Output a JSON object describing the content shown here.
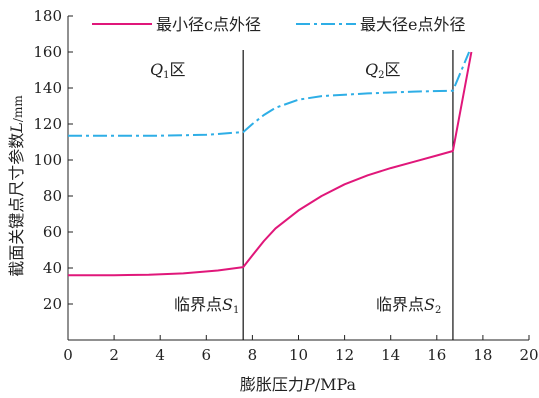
{
  "chart_data": {
    "type": "line",
    "xlabel": {
      "prefix": "膨胀压力",
      "var": "P",
      "unit": "/MPa"
    },
    "ylabel": {
      "prefix": "截面关键点尺寸参数",
      "var": "L",
      "unit": "/mm"
    },
    "xlim": [
      0,
      20
    ],
    "ylim": [
      0,
      180
    ],
    "xticks": [
      0,
      2,
      4,
      6,
      8,
      10,
      12,
      14,
      16,
      18,
      20
    ],
    "yticks": [
      20,
      40,
      60,
      80,
      100,
      120,
      140,
      160,
      180
    ],
    "grid": false,
    "legend_position": "top",
    "series": [
      {
        "name": "最小径c点外径",
        "color": "#e0177a",
        "style": "solid",
        "points": [
          [
            0,
            36
          ],
          [
            2,
            36
          ],
          [
            3.5,
            36.2
          ],
          [
            5,
            37
          ],
          [
            6.5,
            38.6
          ],
          [
            7.6,
            40.5
          ],
          [
            8,
            47
          ],
          [
            8.5,
            55
          ],
          [
            9,
            62
          ],
          [
            10,
            72
          ],
          [
            11,
            80
          ],
          [
            12,
            86.5
          ],
          [
            13,
            91.5
          ],
          [
            14,
            95.5
          ],
          [
            15,
            99
          ],
          [
            16,
            102.5
          ],
          [
            16.7,
            105
          ],
          [
            17.5,
            160
          ]
        ]
      },
      {
        "name": "最大径e点外径",
        "color": "#2eaee6",
        "style": "dashdot",
        "points": [
          [
            0,
            113.5
          ],
          [
            2,
            113.5
          ],
          [
            4,
            113.5
          ],
          [
            6,
            114
          ],
          [
            7.6,
            115.5
          ],
          [
            8,
            120
          ],
          [
            8.5,
            125
          ],
          [
            9,
            129
          ],
          [
            10,
            133.5
          ],
          [
            11,
            135.5
          ],
          [
            12,
            136.3
          ],
          [
            13,
            137
          ],
          [
            14,
            137.5
          ],
          [
            15,
            138
          ],
          [
            16.7,
            138.5
          ],
          [
            17.4,
            160
          ]
        ]
      }
    ],
    "vlines": [
      7.6,
      16.7
    ],
    "annotations": [
      {
        "var": "Q",
        "sub": "1",
        "suffix": "区"
      },
      {
        "var": "Q",
        "sub": "2",
        "suffix": "区"
      },
      {
        "prefix": "临界点",
        "var": "S",
        "sub": "1"
      },
      {
        "prefix": "临界点",
        "var": "S",
        "sub": "2"
      }
    ]
  }
}
